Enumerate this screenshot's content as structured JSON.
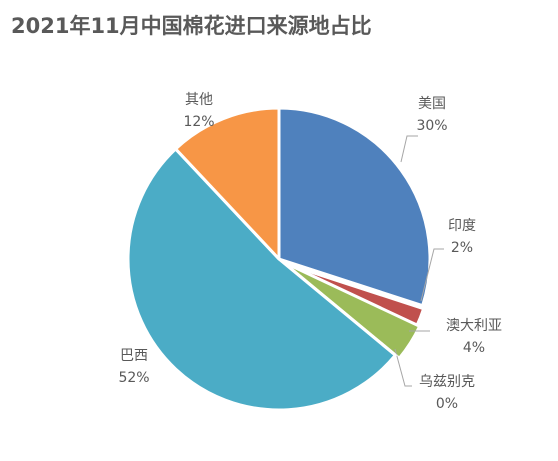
{
  "chart_data": {
    "type": "pie",
    "title": "2021年11月中国棉花进口来源地占比",
    "slices": [
      {
        "name": "美国",
        "value": 30,
        "label": "30%",
        "color": "#4F81BD"
      },
      {
        "name": "印度",
        "value": 2,
        "label": "2%",
        "color": "#C0504D"
      },
      {
        "name": "澳大利亚",
        "value": 4,
        "label": "4%",
        "color": "#9BBB59"
      },
      {
        "name": "乌兹别克",
        "value": 0,
        "label": "0%",
        "color": "#7F7F7F"
      },
      {
        "name": "巴西",
        "value": 52,
        "label": "52%",
        "color": "#4BACC6"
      },
      {
        "name": "其他",
        "value": 12,
        "label": "12%",
        "color": "#F79646"
      }
    ]
  }
}
